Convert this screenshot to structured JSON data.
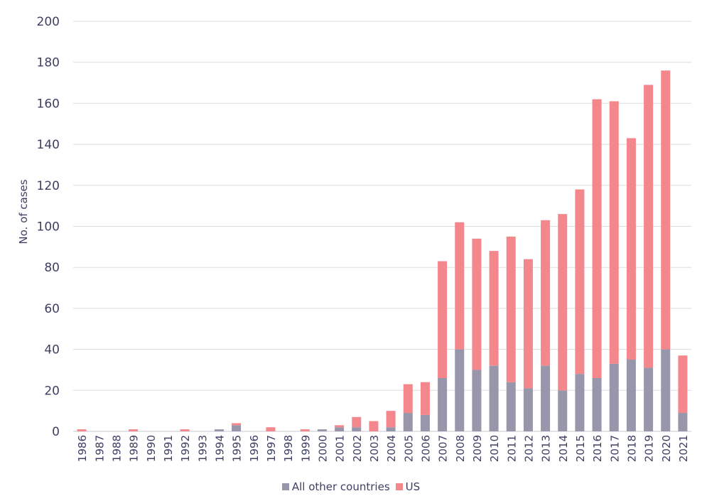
{
  "chart_data": {
    "type": "bar",
    "stacked": true,
    "title": "",
    "xlabel": "",
    "ylabel": "No. of cases",
    "ylim": [
      0,
      200
    ],
    "yticks": [
      0,
      20,
      40,
      60,
      80,
      100,
      120,
      140,
      160,
      180,
      200
    ],
    "grid": true,
    "legend_position": "bottom",
    "categories": [
      "1986",
      "1987",
      "1988",
      "1989",
      "1990",
      "1991",
      "1992",
      "1993",
      "1994",
      "1995",
      "1996",
      "1997",
      "1998",
      "1999",
      "2000",
      "2001",
      "2002",
      "2003",
      "2004",
      "2005",
      "2006",
      "2007",
      "2008",
      "2009",
      "2010",
      "2011",
      "2012",
      "2013",
      "2014",
      "2015",
      "2016",
      "2017",
      "2018",
      "2019",
      "2020",
      "2021"
    ],
    "series": [
      {
        "name": "All other countries",
        "color": "#9896aa",
        "values": [
          0,
          0,
          0,
          0,
          0,
          0,
          0,
          0,
          1,
          3,
          0,
          0,
          0,
          0,
          1,
          2,
          2,
          0,
          2,
          9,
          8,
          26,
          40,
          30,
          32,
          24,
          21,
          32,
          20,
          28,
          26,
          33,
          35,
          31,
          40,
          9
        ]
      },
      {
        "name": "US",
        "color": "#f4878c",
        "values": [
          1,
          0,
          0,
          1,
          0,
          0,
          1,
          0,
          0,
          1,
          0,
          2,
          0,
          1,
          0,
          1,
          5,
          5,
          8,
          14,
          16,
          57,
          62,
          64,
          56,
          71,
          63,
          71,
          86,
          90,
          136,
          128,
          108,
          138,
          136,
          28
        ]
      }
    ]
  }
}
